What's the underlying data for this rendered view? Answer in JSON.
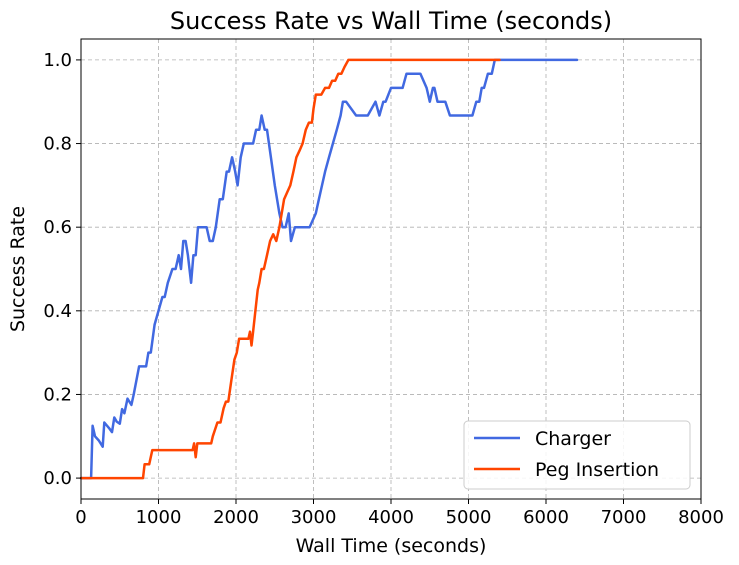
{
  "chart_data": {
    "type": "line",
    "title": "Success Rate vs Wall Time (seconds)",
    "xlabel": "Wall Time (seconds)",
    "ylabel": "Success Rate",
    "xlim": [
      0,
      8000
    ],
    "ylim": [
      -0.05,
      1.05
    ],
    "xticks": [
      0,
      1000,
      2000,
      3000,
      4000,
      5000,
      6000,
      7000,
      8000
    ],
    "xtick_labels": [
      "0",
      "1000",
      "2000",
      "3000",
      "4000",
      "5000",
      "6000",
      "7000",
      "8000"
    ],
    "yticks": [
      0.0,
      0.2,
      0.4,
      0.6,
      0.8,
      1.0
    ],
    "ytick_labels": [
      "0.0",
      "0.2",
      "0.4",
      "0.6",
      "0.8",
      "1.0"
    ],
    "grid": true,
    "legend_position": "lower-right",
    "series": [
      {
        "name": "Charger",
        "color": "#4169e1",
        "x": [
          0,
          130,
          150,
          180,
          230,
          280,
          300,
          360,
          400,
          430,
          460,
          500,
          530,
          560,
          600,
          650,
          680,
          750,
          840,
          870,
          900,
          950,
          1050,
          1080,
          1120,
          1180,
          1220,
          1260,
          1290,
          1320,
          1350,
          1380,
          1420,
          1450,
          1480,
          1510,
          1560,
          1620,
          1660,
          1700,
          1740,
          1790,
          1830,
          1880,
          1910,
          1950,
          1990,
          2020,
          2060,
          2100,
          2160,
          2220,
          2260,
          2300,
          2330,
          2370,
          2400,
          2450,
          2500,
          2560,
          2600,
          2640,
          2680,
          2710,
          2760,
          2800,
          2880,
          2950,
          3030,
          3070,
          3110,
          3150,
          3200,
          3250,
          3300,
          3350,
          3380,
          3420,
          3550,
          3600,
          3700,
          3800,
          3850,
          3900,
          3930,
          4000,
          4080,
          4150,
          4200,
          4300,
          4380,
          4460,
          4500,
          4540,
          4560,
          4600,
          4640,
          4700,
          4760,
          4820,
          4880,
          5050,
          5100,
          5140,
          5170,
          5200,
          5250,
          5300,
          5340,
          5400,
          5450,
          5500,
          6400
        ],
        "y": [
          0.0,
          0.0,
          0.125,
          0.1,
          0.09,
          0.075,
          0.133,
          0.12,
          0.11,
          0.145,
          0.135,
          0.13,
          0.165,
          0.155,
          0.19,
          0.175,
          0.2,
          0.267,
          0.267,
          0.3,
          0.3,
          0.367,
          0.433,
          0.433,
          0.467,
          0.5,
          0.5,
          0.533,
          0.5,
          0.567,
          0.567,
          0.533,
          0.467,
          0.533,
          0.533,
          0.6,
          0.6,
          0.6,
          0.567,
          0.567,
          0.6,
          0.667,
          0.667,
          0.733,
          0.733,
          0.767,
          0.733,
          0.7,
          0.767,
          0.8,
          0.8,
          0.8,
          0.833,
          0.833,
          0.867,
          0.833,
          0.833,
          0.767,
          0.7,
          0.633,
          0.6,
          0.6,
          0.633,
          0.567,
          0.6,
          0.6,
          0.6,
          0.6,
          0.633,
          0.667,
          0.7,
          0.733,
          0.767,
          0.8,
          0.833,
          0.867,
          0.9,
          0.9,
          0.867,
          0.867,
          0.867,
          0.9,
          0.867,
          0.9,
          0.9,
          0.933,
          0.933,
          0.933,
          0.967,
          0.967,
          0.967,
          0.933,
          0.9,
          0.933,
          0.933,
          0.9,
          0.9,
          0.9,
          0.867,
          0.867,
          0.867,
          0.867,
          0.9,
          0.9,
          0.933,
          0.933,
          0.967,
          0.967,
          1.0,
          1.0,
          1.0,
          1.0,
          1.0
        ]
      },
      {
        "name": "Peg Insertion",
        "color": "#ff4500",
        "x": [
          0,
          800,
          820,
          850,
          880,
          920,
          950,
          1050,
          1150,
          1250,
          1350,
          1440,
          1460,
          1480,
          1500,
          1560,
          1620,
          1680,
          1700,
          1760,
          1800,
          1840,
          1870,
          1900,
          1940,
          1980,
          2010,
          2040,
          2080,
          2120,
          2160,
          2180,
          2200,
          2220,
          2250,
          2280,
          2300,
          2330,
          2360,
          2400,
          2440,
          2480,
          2520,
          2560,
          2590,
          2620,
          2660,
          2700,
          2740,
          2780,
          2820,
          2860,
          2900,
          2940,
          2980,
          3000,
          3030,
          3070,
          3100,
          3150,
          3200,
          3240,
          3280,
          3320,
          3360,
          3400,
          3450,
          3500,
          5400
        ],
        "y": [
          0.0,
          0.0,
          0.033,
          0.033,
          0.033,
          0.067,
          0.067,
          0.067,
          0.067,
          0.067,
          0.067,
          0.067,
          0.083,
          0.05,
          0.083,
          0.083,
          0.083,
          0.083,
          0.1,
          0.133,
          0.133,
          0.167,
          0.183,
          0.183,
          0.233,
          0.283,
          0.3,
          0.333,
          0.333,
          0.333,
          0.333,
          0.35,
          0.317,
          0.35,
          0.4,
          0.45,
          0.467,
          0.5,
          0.5,
          0.533,
          0.567,
          0.583,
          0.567,
          0.6,
          0.633,
          0.667,
          0.683,
          0.7,
          0.733,
          0.767,
          0.783,
          0.8,
          0.833,
          0.85,
          0.85,
          0.883,
          0.917,
          0.917,
          0.917,
          0.933,
          0.933,
          0.95,
          0.95,
          0.967,
          0.967,
          0.983,
          1.0,
          1.0,
          1.0
        ]
      }
    ]
  }
}
